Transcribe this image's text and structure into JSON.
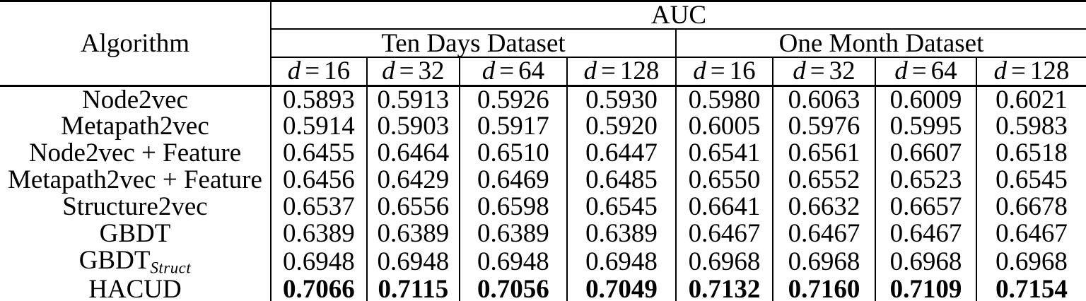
{
  "table": {
    "algorithm_header": "Algorithm",
    "auc_header": "AUC",
    "datasets": [
      {
        "label": "Ten Days Dataset"
      },
      {
        "label": "One Month Dataset"
      }
    ],
    "d_symbol": "d",
    "eq_symbol": "=",
    "dims": [
      "16",
      "32",
      "64",
      "128",
      "16",
      "32",
      "64",
      "128"
    ],
    "rows": [
      {
        "algorithm": "Node2vec",
        "values": [
          "0.5893",
          "0.5913",
          "0.5926",
          "0.5930",
          "0.5980",
          "0.6063",
          "0.6009",
          "0.6021"
        ]
      },
      {
        "algorithm": "Metapath2vec",
        "values": [
          "0.5914",
          "0.5903",
          "0.5917",
          "0.5920",
          "0.6005",
          "0.5976",
          "0.5995",
          "0.5983"
        ]
      },
      {
        "algorithm": "Node2vec + Feature",
        "values": [
          "0.6455",
          "0.6464",
          "0.6510",
          "0.6447",
          "0.6541",
          "0.6561",
          "0.6607",
          "0.6518"
        ]
      },
      {
        "algorithm": "Metapath2vec + Feature",
        "values": [
          "0.6456",
          "0.6429",
          "0.6469",
          "0.6485",
          "0.6550",
          "0.6552",
          "0.6523",
          "0.6545"
        ]
      },
      {
        "algorithm": "Structure2vec",
        "values": [
          "0.6537",
          "0.6556",
          "0.6598",
          "0.6545",
          "0.6641",
          "0.6632",
          "0.6657",
          "0.6678"
        ]
      },
      {
        "algorithm": "GBDT",
        "values": [
          "0.6389",
          "0.6389",
          "0.6389",
          "0.6389",
          "0.6467",
          "0.6467",
          "0.6467",
          "0.6467"
        ]
      },
      {
        "algorithm": "GBDT",
        "algorithm_sub": "Struct",
        "values": [
          "0.6948",
          "0.6948",
          "0.6948",
          "0.6948",
          "0.6968",
          "0.6968",
          "0.6968",
          "0.6968"
        ]
      },
      {
        "algorithm": "HACUD",
        "bold": true,
        "values": [
          "0.7066",
          "0.7115",
          "0.7056",
          "0.7049",
          "0.7132",
          "0.7160",
          "0.7109",
          "0.7154"
        ]
      }
    ]
  }
}
